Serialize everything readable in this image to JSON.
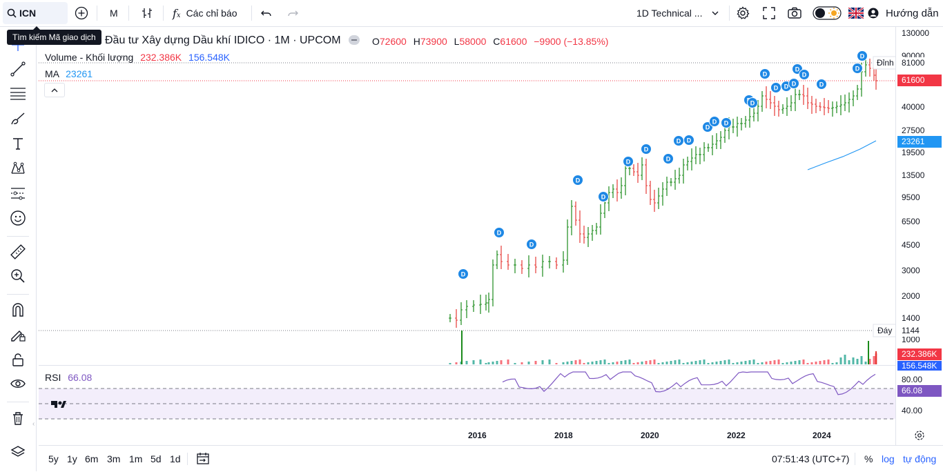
{
  "toolbar": {
    "symbol": "ICN",
    "interval": "M",
    "indicators_label": "Các chỉ báo",
    "layout_name": "1D Technical ...",
    "help_label": "Hướng dẫn"
  },
  "tooltip": {
    "text": "Tìm kiếm Mã giao dịch"
  },
  "legend": {
    "title": "Đầu tư Xây dựng Dầu khí IDICO · 1M · UPCOM",
    "o_label": "O",
    "o_value": "72600",
    "h_label": "H",
    "h_value": "73900",
    "l_label": "L",
    "l_value": "58000",
    "c_label": "C",
    "c_value": "61600",
    "change": "−9900 (−13.85%)",
    "volume_label": "Volume - Khối lượng",
    "volume_value": "232.386K",
    "volume_ma_value": "156.548K",
    "ma_label": "MA",
    "ma_value": "23261",
    "rsi_label": "RSI",
    "rsi_value": "66.08"
  },
  "price_scale": {
    "ticks": [
      "130000",
      "90000",
      "40000",
      "27500",
      "19500",
      "13500",
      "9500",
      "6500",
      "4500",
      "3000",
      "2000",
      "1400",
      "1000"
    ],
    "rsi_ticks": [
      "80.00",
      "40.00"
    ],
    "last_price": "61600",
    "ma_price": "23261",
    "high_price": "81000",
    "high_label": "Đỉnh",
    "low_price": "1144",
    "low_label": "Đáy",
    "volume_tag": "232.386K",
    "volume_ma_tag": "156.548K",
    "rsi_tag": "66.08"
  },
  "colors": {
    "up": "#089981",
    "up_bar": "#1a8a1a",
    "down": "#e53935",
    "ma": "#2196f3",
    "rsi": "#7e57c2",
    "dividend": "#1e88e5",
    "accent": "#2962ff"
  },
  "time_axis": {
    "years": [
      "2016",
      "2018",
      "2020",
      "2022",
      "2024"
    ]
  },
  "dividend_marker_label": "D",
  "bottom": {
    "ranges": [
      "5y",
      "1y",
      "6m",
      "3m",
      "1m",
      "5d",
      "1d"
    ],
    "time": "07:51:43 (UTC+7)",
    "percent": "%",
    "log": "log",
    "auto": "tự động"
  },
  "icons": [
    "search-icon",
    "add-symbol-icon",
    "bar-style-icon",
    "fx-icon",
    "undo-icon",
    "redo-icon",
    "chevron-down-icon",
    "gear-icon",
    "fullscreen-icon",
    "camera-icon",
    "theme-toggle-icon",
    "uk-flag-icon",
    "user-icon",
    "crosshair-icon",
    "trend-line-icon",
    "fib-icon",
    "brush-icon",
    "text-icon",
    "pattern-icon",
    "forecast-icon",
    "emoji-icon",
    "ruler-icon",
    "zoom-icon",
    "magnet-icon",
    "lock-drawing-icon",
    "lock-icon",
    "eye-icon",
    "trash-icon",
    "layers-icon",
    "calendar-icon",
    "settings-icon",
    "tradingview-logo-icon"
  ]
}
